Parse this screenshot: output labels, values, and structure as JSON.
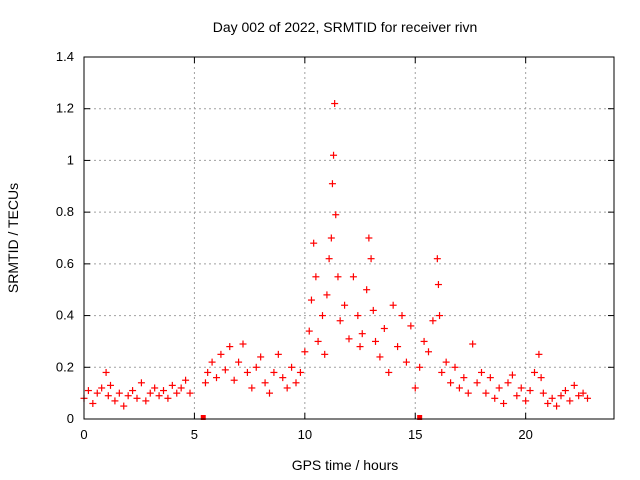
{
  "chart_data": {
    "type": "scatter",
    "title": "Day 002 of 2022, SRMTID for receiver rivn",
    "xlabel": "GPS time / hours",
    "ylabel": "SRMTID / TECUs",
    "xlim": [
      0,
      24
    ],
    "ylim": [
      0,
      1.4
    ],
    "xticks": [
      0,
      5,
      10,
      15,
      20
    ],
    "yticks": [
      0,
      0.2,
      0.4,
      0.6,
      0.8,
      1,
      1.2,
      1.4
    ],
    "xtick_labels": [
      "0",
      "5",
      "10",
      "15",
      "20"
    ],
    "ytick_labels": [
      "0",
      "0.2",
      "0.4",
      "0.6",
      "0.8",
      "1",
      "1.2",
      "1.4"
    ],
    "grid": true,
    "marker": "+",
    "color": "#ff0000",
    "gap_markers": [
      5.4,
      15.2
    ],
    "series": [
      {
        "name": "SRMTID",
        "x": [
          0.0,
          0.2,
          0.4,
          0.6,
          0.8,
          1.0,
          1.1,
          1.2,
          1.4,
          1.6,
          1.8,
          2.0,
          2.2,
          2.4,
          2.6,
          2.8,
          3.0,
          3.2,
          3.4,
          3.6,
          3.8,
          4.0,
          4.2,
          4.4,
          4.6,
          4.8,
          5.5,
          5.6,
          5.8,
          6.0,
          6.2,
          6.4,
          6.6,
          6.8,
          7.0,
          7.2,
          7.4,
          7.6,
          7.8,
          8.0,
          8.2,
          8.4,
          8.6,
          8.8,
          9.0,
          9.2,
          9.4,
          9.6,
          9.8,
          10.0,
          10.2,
          10.3,
          10.4,
          10.5,
          10.6,
          10.8,
          10.9,
          11.0,
          11.1,
          11.2,
          11.25,
          11.3,
          11.35,
          11.4,
          11.5,
          11.6,
          11.8,
          12.0,
          12.2,
          12.4,
          12.5,
          12.6,
          12.8,
          12.9,
          13.0,
          13.1,
          13.2,
          13.4,
          13.6,
          13.8,
          14.0,
          14.2,
          14.4,
          14.6,
          14.8,
          15.0,
          15.2,
          15.4,
          15.6,
          15.8,
          16.0,
          16.05,
          16.1,
          16.2,
          16.4,
          16.6,
          16.8,
          17.0,
          17.2,
          17.4,
          17.6,
          17.8,
          18.0,
          18.2,
          18.4,
          18.6,
          18.8,
          19.0,
          19.2,
          19.4,
          19.6,
          19.8,
          20.0,
          20.2,
          20.4,
          20.6,
          20.7,
          20.8,
          21.0,
          21.2,
          21.4,
          21.6,
          21.8,
          22.0,
          22.2,
          22.4,
          22.6,
          22.8
        ],
        "y": [
          0.08,
          0.11,
          0.06,
          0.1,
          0.12,
          0.18,
          0.09,
          0.13,
          0.07,
          0.1,
          0.05,
          0.09,
          0.11,
          0.08,
          0.14,
          0.07,
          0.1,
          0.12,
          0.09,
          0.11,
          0.08,
          0.13,
          0.1,
          0.12,
          0.15,
          0.1,
          0.14,
          0.18,
          0.22,
          0.16,
          0.25,
          0.19,
          0.28,
          0.15,
          0.22,
          0.29,
          0.18,
          0.12,
          0.2,
          0.24,
          0.14,
          0.1,
          0.18,
          0.25,
          0.16,
          0.12,
          0.2,
          0.14,
          0.18,
          0.26,
          0.34,
          0.46,
          0.68,
          0.55,
          0.3,
          0.4,
          0.25,
          0.48,
          0.62,
          0.7,
          0.91,
          1.02,
          1.22,
          0.79,
          0.55,
          0.38,
          0.44,
          0.31,
          0.55,
          0.4,
          0.28,
          0.33,
          0.5,
          0.7,
          0.62,
          0.42,
          0.3,
          0.24,
          0.35,
          0.18,
          0.44,
          0.28,
          0.4,
          0.22,
          0.36,
          0.12,
          0.2,
          0.3,
          0.26,
          0.38,
          0.62,
          0.52,
          0.4,
          0.18,
          0.22,
          0.14,
          0.2,
          0.12,
          0.16,
          0.1,
          0.29,
          0.14,
          0.18,
          0.1,
          0.16,
          0.08,
          0.12,
          0.06,
          0.14,
          0.17,
          0.09,
          0.12,
          0.07,
          0.11,
          0.18,
          0.25,
          0.16,
          0.1,
          0.06,
          0.08,
          0.05,
          0.09,
          0.11,
          0.07,
          0.13,
          0.09,
          0.1,
          0.08
        ]
      }
    ]
  }
}
